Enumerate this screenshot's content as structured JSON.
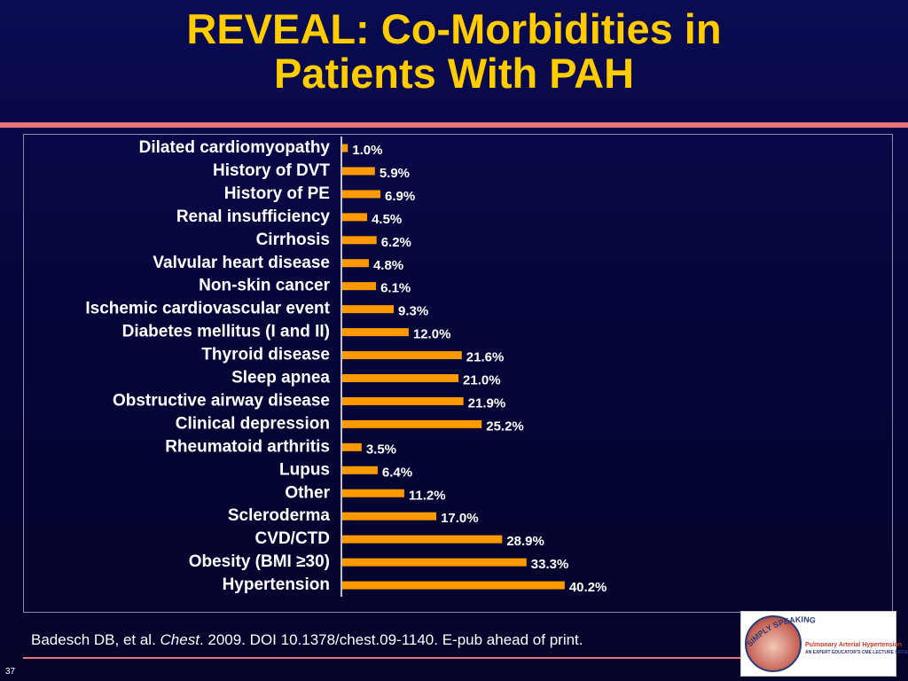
{
  "title": {
    "line1": "REVEAL: Co-Morbidities in",
    "line2": "Patients With PAH"
  },
  "chart_data": {
    "type": "bar",
    "orientation": "horizontal",
    "categories": [
      "Dilated cardiomyopathy",
      "History of DVT",
      "History of PE",
      "Renal insufficiency",
      "Cirrhosis",
      "Valvular heart disease",
      "Non-skin cancer",
      "Ischemic cardiovascular event",
      "Diabetes mellitus (I and II)",
      "Thyroid disease",
      "Sleep apnea",
      "Obstructive airway disease",
      "Clinical depression",
      "Rheumatoid arthritis",
      "Lupus",
      "Other",
      "Scleroderma",
      "CVD/CTD",
      "Obesity (BMI ≥30)",
      "Hypertension"
    ],
    "values": [
      1.0,
      5.9,
      6.9,
      4.5,
      6.2,
      4.8,
      6.1,
      9.3,
      12.0,
      21.6,
      21.0,
      21.9,
      25.2,
      3.5,
      6.4,
      11.2,
      17.0,
      28.9,
      33.3,
      40.2
    ],
    "value_labels": [
      "1.0%",
      "5.9%",
      "6.9%",
      "4.5%",
      "6.2%",
      "4.8%",
      "6.1%",
      "9.3%",
      "12.0%",
      "21.6%",
      "21.0%",
      "21.9%",
      "25.2%",
      "3.5%",
      "6.4%",
      "11.2%",
      "17.0%",
      "28.9%",
      "33.3%",
      "40.2%"
    ],
    "unit": "%",
    "xlim": [
      0,
      100
    ],
    "grid": false,
    "legend": "none",
    "colors": {
      "bar": "#ff9900",
      "text": "#ffffff",
      "axis": "#ffffff"
    }
  },
  "citation": {
    "prefix": "Badesch DB, et al. ",
    "journal": "Chest",
    "suffix": ". 2009. DOI 10.1378/chest.09-1140. E-pub ahead of print."
  },
  "slide_number": "37",
  "logo": {
    "arc_text": "SIMPLY SPEAKING",
    "title": "Pulmonary Arterial Hypertension",
    "subtitle": "AN EXPERT EDUCATOR'S CME LECTURE SERIES"
  },
  "colors": {
    "background": "#06063a",
    "title": "#ffcc00",
    "rule": "#e8737a"
  }
}
